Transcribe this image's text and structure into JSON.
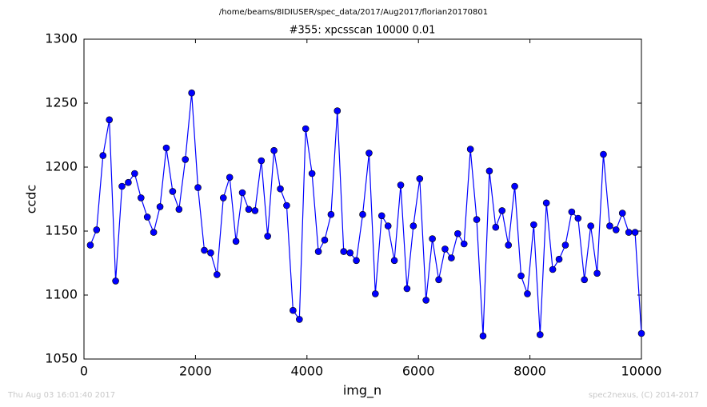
{
  "chart_data": {
    "type": "line",
    "suptitle": "/home/beams/8IDIUSER/spec_data/2017/Aug2017/florian20170801",
    "title": "#355: xpcsscan 10000 0.01",
    "xlabel": "img_n",
    "ylabel": "ccdc",
    "x": [
      114,
      227,
      341,
      455,
      568,
      682,
      795,
      909,
      1023,
      1136,
      1250,
      1364,
      1477,
      1591,
      1705,
      1818,
      1932,
      2045,
      2159,
      2273,
      2386,
      2500,
      2614,
      2727,
      2841,
      2955,
      3068,
      3182,
      3295,
      3409,
      3523,
      3636,
      3750,
      3864,
      3977,
      4091,
      4205,
      4318,
      4432,
      4545,
      4659,
      4773,
      4886,
      5000,
      5114,
      5227,
      5341,
      5455,
      5568,
      5682,
      5795,
      5909,
      6023,
      6136,
      6250,
      6364,
      6477,
      6591,
      6705,
      6818,
      6932,
      7045,
      7159,
      7273,
      7386,
      7500,
      7614,
      7727,
      7841,
      7955,
      8068,
      8182,
      8295,
      8409,
      8523,
      8636,
      8750,
      8864,
      8977,
      9091,
      9205,
      9318,
      9432,
      9545,
      9659,
      9773,
      9886,
      10000
    ],
    "series": [
      {
        "color": "#0000ff",
        "values": [
          1139,
          1151,
          1209,
          1237,
          1111,
          1185,
          1188,
          1195,
          1176,
          1161,
          1149,
          1169,
          1215,
          1181,
          1167,
          1206,
          1258,
          1184,
          1135,
          1133,
          1116,
          1176,
          1192,
          1142,
          1180,
          1167,
          1166,
          1205,
          1146,
          1213,
          1183,
          1170,
          1088,
          1081,
          1230,
          1195,
          1134,
          1143,
          1163,
          1244,
          1134,
          1133,
          1127,
          1163,
          1211,
          1101,
          1162,
          1154,
          1127,
          1186,
          1105,
          1154,
          1191,
          1096,
          1144,
          1112,
          1136,
          1129,
          1148,
          1140,
          1214,
          1159,
          1068,
          1197,
          1153,
          1166,
          1139,
          1185,
          1115,
          1101,
          1155,
          1069,
          1172,
          1120,
          1128,
          1139,
          1165,
          1160,
          1112,
          1154,
          1117,
          1210,
          1154,
          1151,
          1164,
          1149,
          1149,
          1070
        ]
      }
    ],
    "xlim": [
      0,
      10000
    ],
    "xticks": [
      0,
      2000,
      4000,
      6000,
      8000,
      10000
    ],
    "ylim": [
      1050,
      1300
    ],
    "yticks": [
      1050,
      1100,
      1150,
      1200,
      1250,
      1300
    ],
    "grid": false
  },
  "footer": {
    "timestamp": "Thu Aug 03 16:01:40 2017",
    "credit": "spec2nexus, (C) 2014-2017"
  }
}
